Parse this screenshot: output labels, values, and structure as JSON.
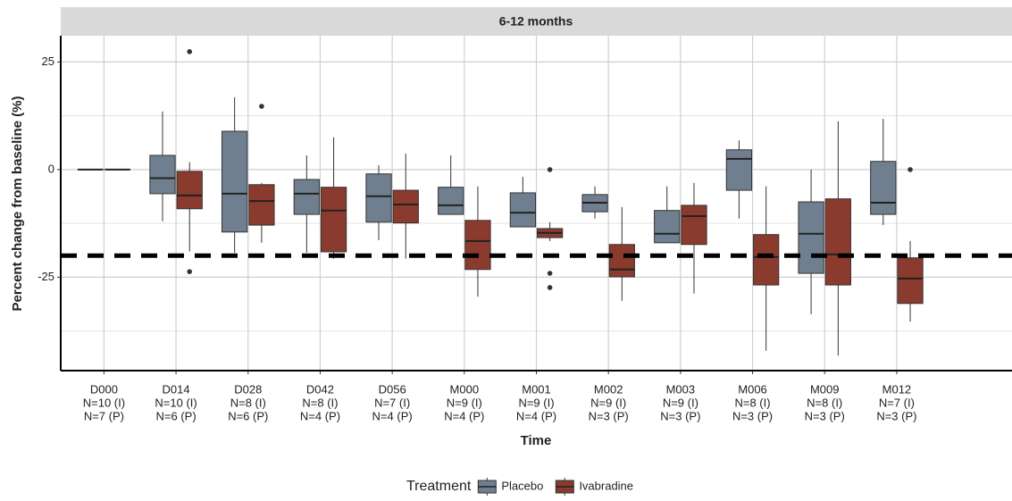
{
  "chart_data": {
    "type": "box",
    "facet_title": "6-12 months",
    "x_label": "Time",
    "y_label": "Percent change from baseline (%)",
    "legend_title": "Treatment",
    "legend_position": "bottom",
    "categories": [
      "D000",
      "D014",
      "D028",
      "D042",
      "D056",
      "M000",
      "M001",
      "M002",
      "M003",
      "M006",
      "M009",
      "M012"
    ],
    "n_labels": [
      [
        "N=10 (I)",
        "N=7 (P)"
      ],
      [
        "N=10 (I)",
        "N=6 (P)"
      ],
      [
        "N=8 (I)",
        "N=6 (P)"
      ],
      [
        "N=8 (I)",
        "N=4 (P)"
      ],
      [
        "N=7 (I)",
        "N=4 (P)"
      ],
      [
        "N=9 (I)",
        "N=4 (P)"
      ],
      [
        "N=9 (I)",
        "N=4 (P)"
      ],
      [
        "N=9 (I)",
        "N=3 (P)"
      ],
      [
        "N=9 (I)",
        "N=3 (P)"
      ],
      [
        "N=8 (I)",
        "N=3 (P)"
      ],
      [
        "N=8 (I)",
        "N=3 (P)"
      ],
      [
        "N=7 (I)",
        "N=3 (P)"
      ]
    ],
    "ylim": [
      -46.7,
      31.1
    ],
    "yticks": [
      -25,
      0,
      25
    ],
    "yminorticks": [
      -37.5,
      -12.5,
      12.5
    ],
    "grid": true,
    "reference_line": -20,
    "series": [
      {
        "name": "Placebo",
        "color": "#6f7f8f",
        "min": [
          0,
          -12,
          -19.3,
          -19.3,
          -16.4,
          -10.4,
          -13.3,
          -11.4,
          -17,
          -11.4,
          -33.6,
          -12.9
        ],
        "q1": [
          0,
          -5.6,
          -14.5,
          -10.4,
          -12.2,
          -10.4,
          -13.3,
          -9.8,
          -17,
          -4.8,
          -24.1,
          -10.4
        ],
        "median": [
          0,
          -2,
          -5.6,
          -5.6,
          -6.2,
          -8.3,
          -10,
          -7.7,
          -14.9,
          2.5,
          -14.9,
          -7.7
        ],
        "q3": [
          0,
          3.3,
          8.9,
          -2.3,
          -1,
          -4.1,
          -5.4,
          -5.8,
          -9.5,
          4.6,
          -7.5,
          1.9
        ],
        "max": [
          0,
          13.5,
          16.8,
          3.3,
          1,
          3.3,
          -1.7,
          -3.9,
          -3.9,
          6.8,
          0,
          11.8
        ],
        "outliers": [
          [],
          [],
          [],
          [],
          [],
          [],
          [],
          [],
          [],
          [],
          [],
          []
        ]
      },
      {
        "name": "Ivabradine",
        "color": "#8b3a2e",
        "min": [
          0,
          -19,
          -17,
          -20.7,
          -20.7,
          -29.5,
          -16.6,
          -30.5,
          -28.8,
          -42.1,
          -43.2,
          -35.3
        ],
        "q1": [
          0,
          -9.1,
          -12.9,
          -19.1,
          -12.4,
          -23.2,
          -15.8,
          -24.9,
          -17.4,
          -26.8,
          -26.8,
          -31.1
        ],
        "median": [
          0,
          -6,
          -7.3,
          -9.5,
          -8.1,
          -16.6,
          -14.7,
          -23.2,
          -10.8,
          -20.3,
          -19.7,
          -25.3
        ],
        "q3": [
          0,
          -0.4,
          -3.5,
          -4.1,
          -4.8,
          -11.8,
          -13.7,
          -17.4,
          -8.3,
          -15.1,
          -6.8,
          -20.5
        ],
        "max": [
          0,
          1.7,
          -3.1,
          7.5,
          3.7,
          -3.9,
          -12.2,
          -8.7,
          -3.1,
          -3.9,
          11.2,
          -16.6
        ],
        "outliers": [
          [],
          [
            27.4,
            -23.7
          ],
          [
            14.7
          ],
          [],
          [],
          [],
          [
            0,
            -24.1,
            -27.4
          ],
          [],
          [],
          [],
          [],
          [
            0
          ]
        ]
      }
    ]
  }
}
